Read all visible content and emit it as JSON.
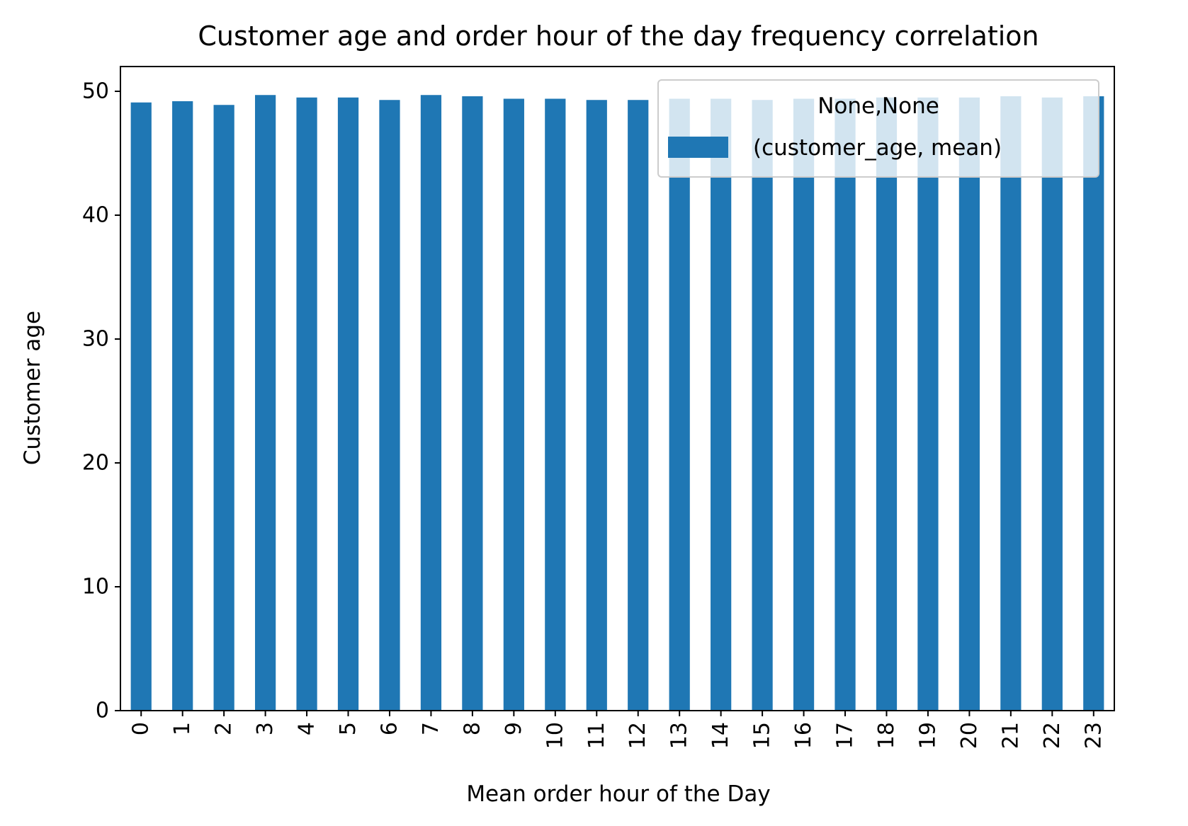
{
  "chart_data": {
    "type": "bar",
    "title": "Customer age and order hour of the day frequency correlation",
    "xlabel": "Mean order hour of the Day",
    "ylabel": "Customer age",
    "categories": [
      "0",
      "1",
      "2",
      "3",
      "4",
      "5",
      "6",
      "7",
      "8",
      "9",
      "10",
      "11",
      "12",
      "13",
      "14",
      "15",
      "16",
      "17",
      "18",
      "19",
      "20",
      "21",
      "22",
      "23"
    ],
    "series": [
      {
        "name": "(customer_age, mean)",
        "values": [
          49.1,
          49.2,
          48.9,
          49.7,
          49.5,
          49.5,
          49.3,
          49.7,
          49.6,
          49.4,
          49.4,
          49.3,
          49.3,
          49.4,
          49.4,
          49.3,
          49.4,
          49.4,
          49.5,
          49.5,
          49.5,
          49.6,
          49.5,
          49.6
        ],
        "color": "#1f77b4"
      }
    ],
    "ylim": [
      0,
      52
    ],
    "yticks": [
      0,
      10,
      20,
      30,
      40,
      50
    ],
    "grid": false,
    "legend": {
      "title": "None,None",
      "placement": "upper-right"
    }
  }
}
